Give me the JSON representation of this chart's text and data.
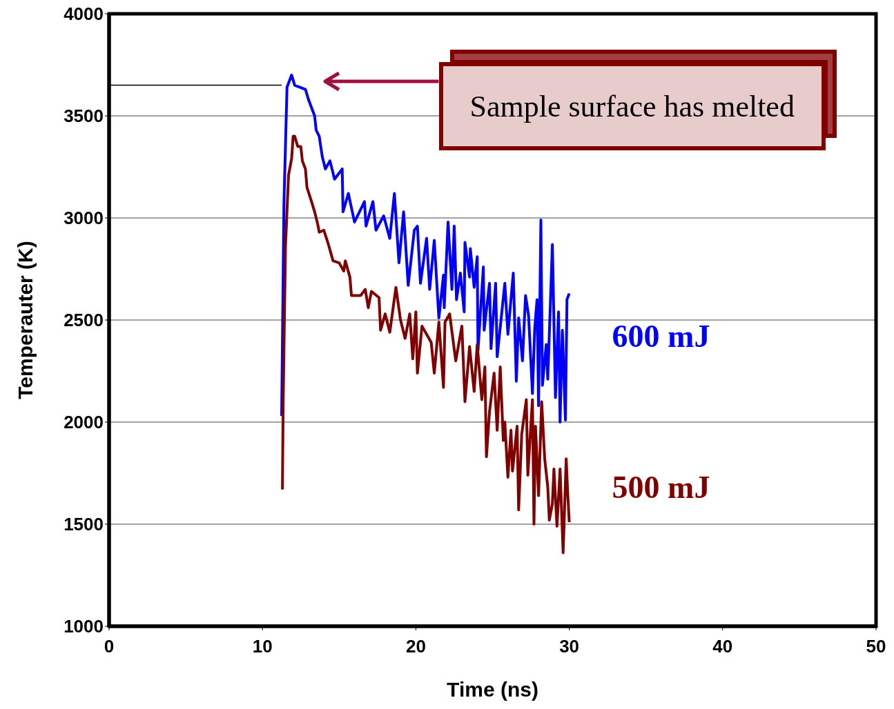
{
  "chart_data": {
    "type": "line",
    "xlabel": "Time (ns)",
    "ylabel": "Temperauter (K)",
    "xlim": [
      0,
      50
    ],
    "xticks": [
      0,
      10,
      20,
      30,
      40,
      50
    ],
    "ylim": [
      1000,
      4000
    ],
    "yticks": [
      1000,
      1500,
      2000,
      2500,
      3000,
      3500,
      4000
    ],
    "grid": "y",
    "legend": false,
    "marker": "none",
    "line_style": "solid",
    "annotations": [
      "Sample surface has melted"
    ],
    "ref_lines": [
      {
        "axis": "y",
        "value": 3650,
        "color": "#000000"
      }
    ],
    "series": [
      {
        "name": "600 mJ",
        "color": "#0000ff",
        "x": [
          11.25,
          11.4,
          11.6,
          11.9,
          12.1,
          12.8,
          13.0,
          13.4,
          13.5,
          13.7,
          13.9,
          14.1,
          14.4,
          14.7,
          15.2,
          15.25,
          15.6,
          16.0,
          16.65,
          16.75,
          17.2,
          17.4,
          17.9,
          18.3,
          18.6,
          18.9,
          19.2,
          19.5,
          19.9,
          20.1,
          20.3,
          20.7,
          20.9,
          21.2,
          21.5,
          21.8,
          21.85,
          22.1,
          22.35,
          22.5,
          22.65,
          22.9,
          23.15,
          23.2,
          23.5,
          23.55,
          23.8,
          24.0,
          24.05,
          24.4,
          24.45,
          24.8,
          24.9,
          25.2,
          25.3,
          25.8,
          26.0,
          26.35,
          26.55,
          26.7,
          26.95,
          27.15,
          27.35,
          27.6,
          27.75,
          27.9,
          28.0,
          28.15,
          28.25,
          28.5,
          28.6,
          28.9,
          29.1,
          29.3,
          29.4,
          29.55,
          29.75,
          29.85,
          30.0
        ],
        "values": [
          2030,
          3070,
          3640,
          3700,
          3650,
          3630,
          3580,
          3500,
          3430,
          3400,
          3300,
          3240,
          3280,
          3190,
          3240,
          3030,
          3120,
          2980,
          3080,
          2960,
          3080,
          2940,
          3010,
          2900,
          3120,
          2780,
          3030,
          2670,
          2940,
          2960,
          2680,
          2900,
          2650,
          2890,
          2510,
          2720,
          2560,
          2980,
          2650,
          2960,
          2600,
          2730,
          2540,
          2880,
          2710,
          2850,
          2660,
          2810,
          2350,
          2760,
          2450,
          2680,
          2360,
          2680,
          2320,
          2680,
          2430,
          2730,
          2200,
          2510,
          2300,
          2620,
          2520,
          2140,
          2460,
          2600,
          2080,
          2990,
          2180,
          2380,
          2210,
          2870,
          2120,
          2540,
          2000,
          2450,
          2010,
          2600,
          2630
        ]
      },
      {
        "name": "500 mJ",
        "color": "#800000",
        "x": [
          11.3,
          11.35,
          11.5,
          11.7,
          11.9,
          12.0,
          12.1,
          12.3,
          12.5,
          12.6,
          12.8,
          12.9,
          13.2,
          13.4,
          13.6,
          13.7,
          14.0,
          14.3,
          14.6,
          15.0,
          15.3,
          15.4,
          15.7,
          15.8,
          16.4,
          16.7,
          16.9,
          17.1,
          17.6,
          17.7,
          18.0,
          18.3,
          18.7,
          19.0,
          19.3,
          19.6,
          19.8,
          20.0,
          20.1,
          20.4,
          21.0,
          21.2,
          21.5,
          21.8,
          21.9,
          22.2,
          22.6,
          23.0,
          23.2,
          23.5,
          23.8,
          24.0,
          24.3,
          24.5,
          24.6,
          24.8,
          25.1,
          25.3,
          25.5,
          25.7,
          25.8,
          26.0,
          26.2,
          26.3,
          26.6,
          26.7,
          26.9,
          27.2,
          27.3,
          27.6,
          27.7,
          27.8,
          28.0,
          28.2,
          28.4,
          28.6,
          28.7,
          28.9,
          29.0,
          29.2,
          29.4,
          29.6,
          29.8,
          29.9,
          30.0
        ],
        "values": [
          1670,
          2100,
          2860,
          3210,
          3290,
          3400,
          3400,
          3350,
          3350,
          3280,
          3240,
          3150,
          3080,
          3030,
          2970,
          2930,
          2940,
          2870,
          2790,
          2780,
          2740,
          2790,
          2710,
          2620,
          2620,
          2650,
          2560,
          2640,
          2610,
          2450,
          2530,
          2440,
          2660,
          2500,
          2410,
          2530,
          2310,
          2540,
          2240,
          2470,
          2390,
          2240,
          2490,
          2170,
          2490,
          2530,
          2300,
          2470,
          2100,
          2370,
          2150,
          2380,
          2110,
          2270,
          1830,
          2050,
          2240,
          1960,
          2270,
          1910,
          2000,
          1730,
          1960,
          1760,
          1980,
          1570,
          1940,
          2110,
          1740,
          2110,
          1500,
          1980,
          1640,
          2100,
          1820,
          1680,
          1520,
          1600,
          1770,
          1490,
          1770,
          1360,
          1820,
          1650,
          1510
        ]
      }
    ]
  }
}
